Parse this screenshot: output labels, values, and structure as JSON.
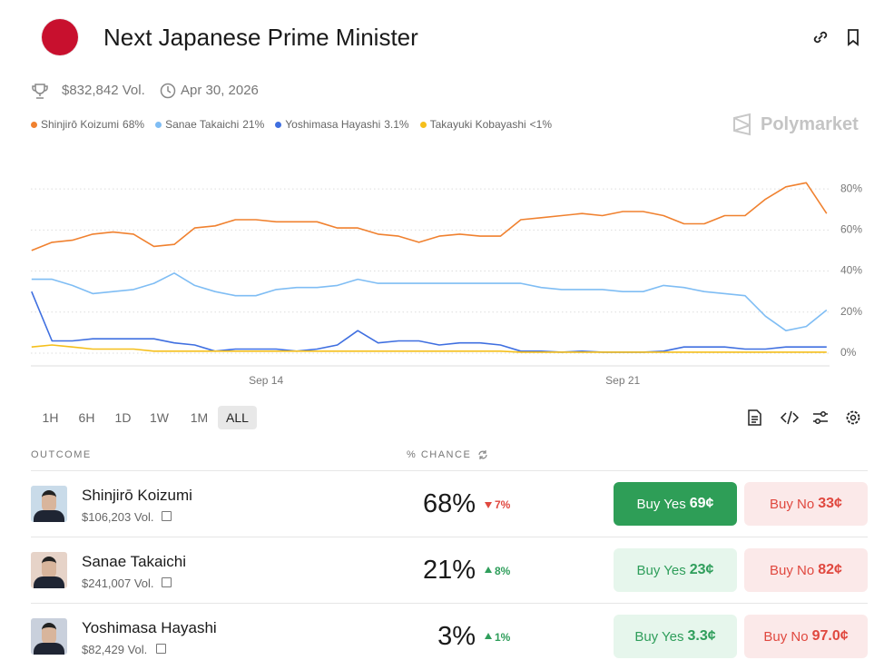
{
  "header": {
    "title": "Next Japanese Prime Minister",
    "volume": "$832,842 Vol.",
    "end_date": "Apr 30, 2026",
    "brand": "Polymarket"
  },
  "chart_data": {
    "type": "line",
    "x": [
      9.4,
      9.8,
      10.2,
      10.6,
      11.0,
      11.4,
      11.8,
      12.2,
      12.6,
      13.0,
      13.4,
      13.8,
      14.2,
      14.6,
      15.0,
      15.4,
      15.8,
      16.2,
      16.6,
      17.0,
      17.4,
      17.8,
      18.2,
      18.6,
      19.0,
      19.4,
      19.8,
      20.2,
      20.6,
      21.0,
      21.4,
      21.8,
      22.2,
      22.6,
      23.0,
      23.4,
      23.8,
      24.2,
      24.6,
      25.0
    ],
    "xlim": [
      9.4,
      25.05
    ],
    "xticks": [
      {
        "value": 14,
        "label": "Sep 14"
      },
      {
        "value": 21,
        "label": "Sep 21"
      }
    ],
    "ylim": [
      -6,
      88
    ],
    "yticks": [
      {
        "value": 0,
        "label": "0%"
      },
      {
        "value": 20,
        "label": "20%"
      },
      {
        "value": 40,
        "label": "40%"
      },
      {
        "value": 60,
        "label": "60%"
      },
      {
        "value": 80,
        "label": "80%"
      }
    ],
    "grid": true,
    "series": [
      {
        "name": "Shinjirō Koizumi",
        "legend_label": "68%",
        "color": "#f0812f",
        "values": [
          50,
          54,
          55,
          58,
          59,
          58,
          52,
          53,
          61,
          62,
          65,
          65,
          64,
          64,
          64,
          61,
          61,
          58,
          57,
          54,
          57,
          58,
          57,
          57,
          65,
          66,
          67,
          68,
          67,
          69,
          69,
          67,
          63,
          63,
          67,
          67,
          75,
          81,
          83,
          68
        ]
      },
      {
        "name": "Sanae Takaichi",
        "legend_label": "21%",
        "color": "#7fbdf4",
        "values": [
          36,
          36,
          33,
          29,
          30,
          31,
          34,
          39,
          33,
          30,
          28,
          28,
          31,
          32,
          32,
          33,
          36,
          34,
          34,
          34,
          34,
          34,
          34,
          34,
          34,
          32,
          31,
          31,
          31,
          30,
          30,
          33,
          32,
          30,
          29,
          28,
          18,
          11,
          13,
          21
        ]
      },
      {
        "name": "Yoshimasa Hayashi",
        "legend_label": "3.1%",
        "color": "#3f6fe0",
        "values": [
          30,
          6,
          6,
          7,
          7,
          7,
          7,
          5,
          4,
          1,
          2,
          2,
          2,
          1,
          2,
          4,
          11,
          5,
          6,
          6,
          4,
          5,
          5,
          4,
          1,
          1,
          0.5,
          1,
          0.5,
          0.5,
          0.5,
          1,
          3,
          3,
          3,
          2,
          2,
          3,
          3,
          3
        ]
      },
      {
        "name": "Takayuki Kobayashi",
        "legend_label": "<1%",
        "color": "#f5bf1b",
        "values": [
          3,
          4,
          3,
          2,
          2,
          2,
          1,
          1,
          1,
          1,
          1,
          1,
          1,
          1,
          1,
          1,
          1,
          1,
          1,
          1,
          1,
          1,
          1,
          1,
          0.5,
          0.5,
          0.5,
          0.5,
          0.5,
          0.5,
          0.5,
          0.5,
          0.5,
          0.5,
          0.5,
          0.5,
          0.5,
          0.5,
          0.5,
          0.5
        ]
      }
    ]
  },
  "ranges": [
    "1H",
    "6H",
    "1D",
    "1W",
    "1M",
    "ALL"
  ],
  "table": {
    "headers": [
      "OUTCOME",
      "% CHANCE"
    ],
    "rows": [
      {
        "name": "Shinjirō Koizumi",
        "volume": "$106,203 Vol.",
        "chance": "68%",
        "change": "7%",
        "direction": "down",
        "buy_yes": "Buy Yes",
        "yes_price": "69¢",
        "buy_no": "Buy No",
        "no_price": "33¢",
        "active": true
      },
      {
        "name": "Sanae Takaichi",
        "volume": "$241,007 Vol.",
        "chance": "21%",
        "change": "8%",
        "direction": "up",
        "buy_yes": "Buy Yes",
        "yes_price": "23¢",
        "buy_no": "Buy No",
        "no_price": "82¢",
        "active": false
      },
      {
        "name": "Yoshimasa Hayashi",
        "volume": "$82,429 Vol.",
        "chance": "3%",
        "change": "1%",
        "direction": "up",
        "buy_yes": "Buy Yes",
        "yes_price": "3.3¢",
        "buy_no": "Buy No",
        "no_price": "97.0¢",
        "active": false
      }
    ]
  }
}
